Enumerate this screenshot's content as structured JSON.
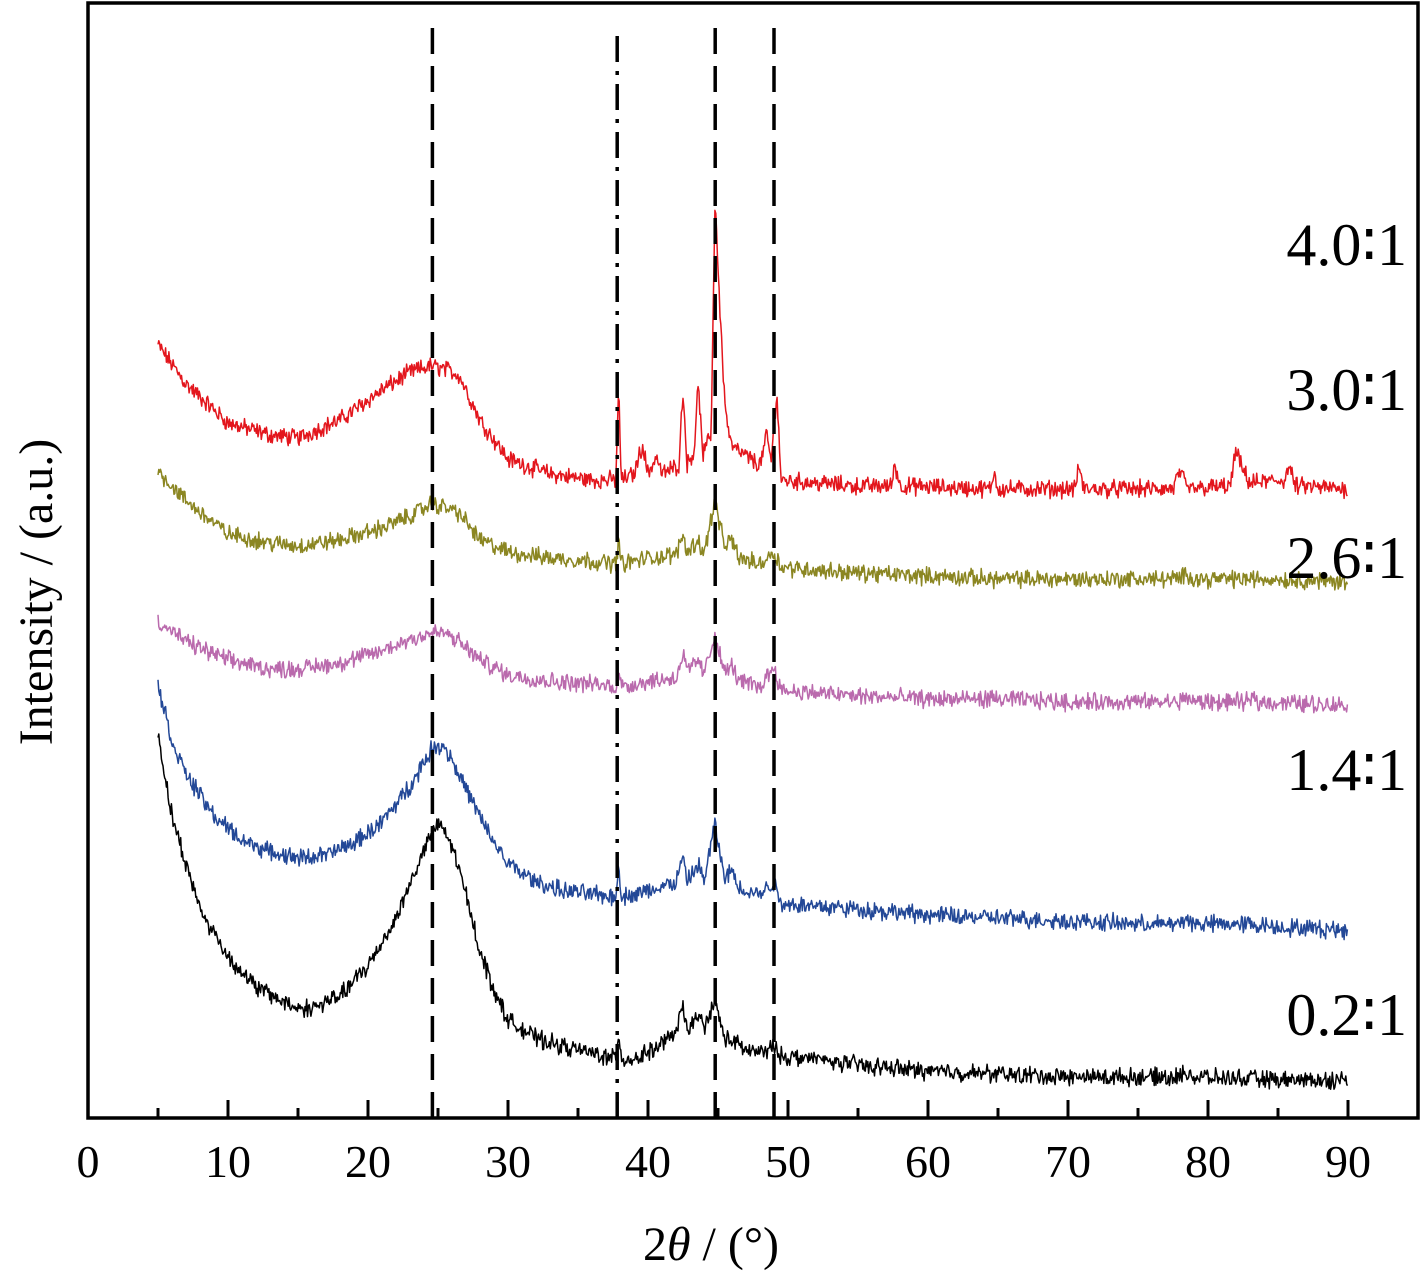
{
  "chart_data": {
    "type": "line",
    "title": "",
    "xlabel_prefix": "2",
    "xlabel_symbol": "θ",
    "xlabel_suffix": " / (°)",
    "ylabel": "Intensity / (a.u.)",
    "xlim": [
      0,
      90
    ],
    "x_ticks": [
      "0",
      "10",
      "20",
      "30",
      "40",
      "50",
      "60",
      "70",
      "80",
      "90"
    ],
    "x_major": [
      0,
      10,
      20,
      30,
      40,
      50,
      60,
      70,
      80,
      90
    ],
    "x_minor_step": 5,
    "y_ticks_shown": false,
    "grid": false,
    "legend": "inline labels at right",
    "reference_lines": [
      {
        "x": 24.6,
        "style": "dashed"
      },
      {
        "x": 37.8,
        "style": "dash-dot"
      },
      {
        "x": 44.8,
        "style": "dashed"
      },
      {
        "x": 49.0,
        "style": "dashed"
      }
    ],
    "series": [
      {
        "label": "4.0∶1",
        "color": "#e3161d",
        "points": [
          [
            5,
            2.45
          ],
          [
            7,
            2.32
          ],
          [
            10,
            2.19
          ],
          [
            13,
            2.15
          ],
          [
            15,
            2.14
          ],
          [
            18,
            2.2
          ],
          [
            21,
            2.3
          ],
          [
            23,
            2.36
          ],
          [
            24.5,
            2.38
          ],
          [
            25.5,
            2.37
          ],
          [
            26.5,
            2.35
          ],
          [
            28,
            2.2
          ],
          [
            30,
            2.07
          ],
          [
            33,
            2.02
          ],
          [
            36,
            2
          ],
          [
            37.7,
            2
          ],
          [
            37.9,
            2.3
          ],
          [
            38.1,
            2
          ],
          [
            39,
            2.02
          ],
          [
            39.6,
            2.12
          ],
          [
            40,
            2.02
          ],
          [
            40.6,
            2.08
          ],
          [
            41,
            2.02
          ],
          [
            42.2,
            2.05
          ],
          [
            42.5,
            2.3
          ],
          [
            42.8,
            2.05
          ],
          [
            43.3,
            2.1
          ],
          [
            43.6,
            2.33
          ],
          [
            43.9,
            2.08
          ],
          [
            44.5,
            2.15
          ],
          [
            44.8,
            2.95
          ],
          [
            45.1,
            2.6
          ],
          [
            45.5,
            2.25
          ],
          [
            45.9,
            2.12
          ],
          [
            46.3,
            2.1
          ],
          [
            48,
            2.05
          ],
          [
            48.5,
            2.15
          ],
          [
            48.8,
            2.06
          ],
          [
            49.2,
            2.3
          ],
          [
            49.5,
            2
          ],
          [
            52,
            1.99
          ],
          [
            55,
            1.98
          ],
          [
            57.4,
            1.98
          ],
          [
            57.6,
            2.06
          ],
          [
            58,
            1.98
          ],
          [
            64.5,
            1.97
          ],
          [
            64.7,
            2.03
          ],
          [
            65,
            1.97
          ],
          [
            70.5,
            1.97
          ],
          [
            70.8,
            2.05
          ],
          [
            71.1,
            1.97
          ],
          [
            77.5,
            1.97
          ],
          [
            78,
            2.03
          ],
          [
            78.5,
            1.97
          ],
          [
            81.6,
            1.98
          ],
          [
            82,
            2.1
          ],
          [
            82.4,
            2.04
          ],
          [
            83,
            1.99
          ],
          [
            85.5,
            2
          ],
          [
            85.8,
            2.05
          ],
          [
            86.2,
            1.98
          ],
          [
            90,
            1.97
          ]
        ]
      },
      {
        "label": "3.0∶1",
        "color": "#8b8622",
        "points": [
          [
            5,
            2.03
          ],
          [
            7,
            1.93
          ],
          [
            10,
            1.82
          ],
          [
            13,
            1.79
          ],
          [
            15,
            1.78
          ],
          [
            18,
            1.8
          ],
          [
            21,
            1.84
          ],
          [
            23,
            1.88
          ],
          [
            24.5,
            1.92
          ],
          [
            25.5,
            1.91
          ],
          [
            26.5,
            1.89
          ],
          [
            28,
            1.8
          ],
          [
            30,
            1.76
          ],
          [
            33,
            1.74
          ],
          [
            36,
            1.73
          ],
          [
            37.7,
            1.72
          ],
          [
            37.9,
            1.8
          ],
          [
            38.1,
            1.72
          ],
          [
            40,
            1.74
          ],
          [
            42,
            1.75
          ],
          [
            42.5,
            1.82
          ],
          [
            42.8,
            1.76
          ],
          [
            43.6,
            1.8
          ],
          [
            44,
            1.75
          ],
          [
            44.8,
            1.94
          ],
          [
            45.1,
            1.85
          ],
          [
            45.5,
            1.78
          ],
          [
            46,
            1.8
          ],
          [
            46.5,
            1.74
          ],
          [
            48,
            1.72
          ],
          [
            49,
            1.76
          ],
          [
            49.5,
            1.71
          ],
          [
            52,
            1.7
          ],
          [
            55,
            1.69
          ],
          [
            60,
            1.68
          ],
          [
            65,
            1.67
          ],
          [
            70,
            1.67
          ],
          [
            78,
            1.67
          ],
          [
            78.5,
            1.69
          ],
          [
            79,
            1.67
          ],
          [
            85,
            1.67
          ],
          [
            90,
            1.66
          ]
        ]
      },
      {
        "label": "2.6∶1",
        "color": "#ba6aad",
        "points": [
          [
            5,
            1.53
          ],
          [
            7,
            1.46
          ],
          [
            10,
            1.4
          ],
          [
            13,
            1.37
          ],
          [
            15,
            1.37
          ],
          [
            18,
            1.39
          ],
          [
            21,
            1.43
          ],
          [
            23,
            1.47
          ],
          [
            24.5,
            1.49
          ],
          [
            25.5,
            1.49
          ],
          [
            26.5,
            1.46
          ],
          [
            28,
            1.4
          ],
          [
            30,
            1.35
          ],
          [
            33,
            1.33
          ],
          [
            36,
            1.32
          ],
          [
            37.7,
            1.31
          ],
          [
            37.9,
            1.38
          ],
          [
            38.1,
            1.31
          ],
          [
            40,
            1.33
          ],
          [
            42,
            1.34
          ],
          [
            42.5,
            1.42
          ],
          [
            42.8,
            1.36
          ],
          [
            43.6,
            1.4
          ],
          [
            44,
            1.35
          ],
          [
            44.8,
            1.49
          ],
          [
            45.1,
            1.42
          ],
          [
            45.5,
            1.36
          ],
          [
            46,
            1.38
          ],
          [
            46.5,
            1.33
          ],
          [
            48,
            1.31
          ],
          [
            49,
            1.38
          ],
          [
            49.5,
            1.3
          ],
          [
            52,
            1.29
          ],
          [
            55,
            1.28
          ],
          [
            60,
            1.27
          ],
          [
            65,
            1.27
          ],
          [
            70,
            1.26
          ],
          [
            78,
            1.26
          ],
          [
            78.5,
            1.28
          ],
          [
            79,
            1.26
          ],
          [
            83,
            1.26
          ],
          [
            83.3,
            1.28
          ],
          [
            83.6,
            1.26
          ],
          [
            90,
            1.25
          ]
        ]
      },
      {
        "label": "1.4∶1",
        "color": "#234897",
        "points": [
          [
            5,
            1.32
          ],
          [
            6,
            1.13
          ],
          [
            7,
            1.02
          ],
          [
            9,
            0.88
          ],
          [
            11,
            0.8
          ],
          [
            13,
            0.76
          ],
          [
            15,
            0.74
          ],
          [
            17,
            0.75
          ],
          [
            19,
            0.79
          ],
          [
            21,
            0.86
          ],
          [
            23,
            0.98
          ],
          [
            24.5,
            1.1
          ],
          [
            25.3,
            1.12
          ],
          [
            26,
            1.07
          ],
          [
            27,
            0.97
          ],
          [
            28.5,
            0.83
          ],
          [
            30,
            0.72
          ],
          [
            32,
            0.66
          ],
          [
            34,
            0.63
          ],
          [
            36,
            0.62
          ],
          [
            37.7,
            0.61
          ],
          [
            37.9,
            0.72
          ],
          [
            38.1,
            0.61
          ],
          [
            40,
            0.63
          ],
          [
            42,
            0.66
          ],
          [
            42.5,
            0.74
          ],
          [
            42.8,
            0.66
          ],
          [
            43.6,
            0.72
          ],
          [
            44,
            0.66
          ],
          [
            44.8,
            0.86
          ],
          [
            45.1,
            0.76
          ],
          [
            45.5,
            0.67
          ],
          [
            46,
            0.7
          ],
          [
            46.5,
            0.64
          ],
          [
            48,
            0.62
          ],
          [
            49,
            0.66
          ],
          [
            49.5,
            0.59
          ],
          [
            52,
            0.58
          ],
          [
            55,
            0.57
          ],
          [
            60,
            0.55
          ],
          [
            65,
            0.54
          ],
          [
            70,
            0.53
          ],
          [
            75,
            0.52
          ],
          [
            78,
            0.52
          ],
          [
            78.5,
            0.54
          ],
          [
            79,
            0.52
          ],
          [
            83,
            0.52
          ],
          [
            85,
            0.51
          ],
          [
            90,
            0.5
          ]
        ]
      },
      {
        "label": "0.2∶1",
        "color": "#000000",
        "points": [
          [
            5,
            1.15
          ],
          [
            6,
            0.88
          ],
          [
            7,
            0.72
          ],
          [
            8,
            0.57
          ],
          [
            10,
            0.41
          ],
          [
            12,
            0.31
          ],
          [
            14,
            0.26
          ],
          [
            15,
            0.24
          ],
          [
            16,
            0.24
          ],
          [
            18,
            0.28
          ],
          [
            20,
            0.38
          ],
          [
            22,
            0.54
          ],
          [
            23.5,
            0.71
          ],
          [
            24.5,
            0.82
          ],
          [
            25.2,
            0.85
          ],
          [
            26,
            0.78
          ],
          [
            27,
            0.62
          ],
          [
            28,
            0.43
          ],
          [
            29,
            0.3
          ],
          [
            30,
            0.2
          ],
          [
            32,
            0.14
          ],
          [
            34,
            0.11
          ],
          [
            36,
            0.09
          ],
          [
            37.7,
            0.07
          ],
          [
            37.9,
            0.16
          ],
          [
            38.1,
            0.07
          ],
          [
            39,
            0.07
          ],
          [
            40,
            0.09
          ],
          [
            41,
            0.12
          ],
          [
            42,
            0.16
          ],
          [
            42.5,
            0.24
          ],
          [
            42.8,
            0.17
          ],
          [
            43.6,
            0.21
          ],
          [
            44,
            0.18
          ],
          [
            44.8,
            0.26
          ],
          [
            45.1,
            0.2
          ],
          [
            45.5,
            0.14
          ],
          [
            46,
            0.13
          ],
          [
            47,
            0.1
          ],
          [
            48,
            0.09
          ],
          [
            49,
            0.11
          ],
          [
            49.5,
            0.08
          ],
          [
            52,
            0.07
          ],
          [
            55,
            0.05
          ],
          [
            60,
            0.03
          ],
          [
            65,
            0.02
          ],
          [
            70,
            0.01
          ],
          [
            75,
            0.01
          ],
          [
            78,
            0.01
          ],
          [
            78.5,
            0.03
          ],
          [
            79,
            0.01
          ],
          [
            85,
            0
          ],
          [
            90,
            0
          ]
        ]
      }
    ]
  }
}
